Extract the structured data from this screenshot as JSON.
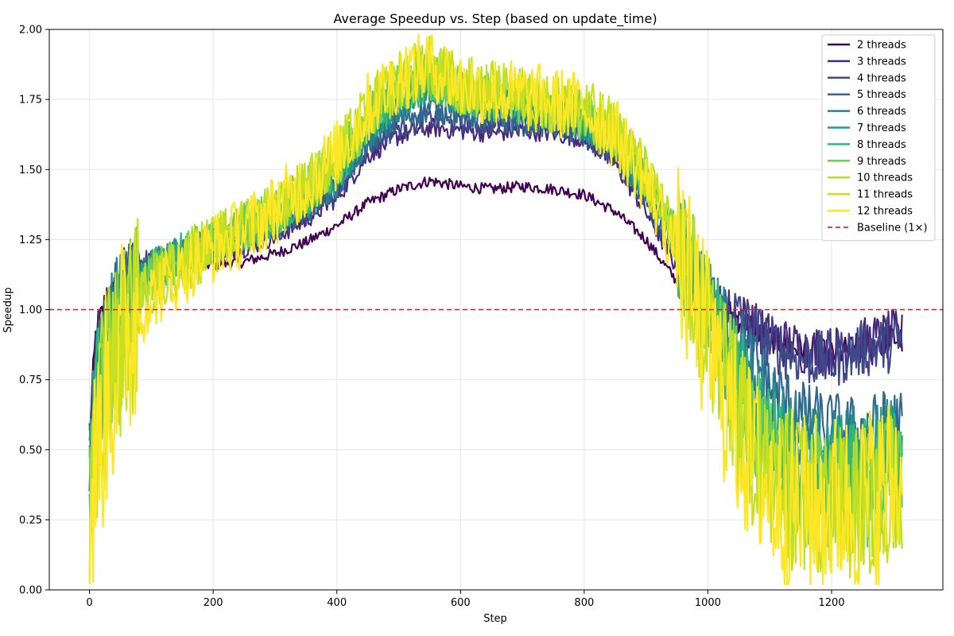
{
  "chart_data": {
    "type": "line",
    "title": "Average Speedup vs. Step (based on update_time)",
    "xlabel": "Step",
    "ylabel": "Speedup",
    "xlim": [
      -65,
      1380
    ],
    "ylim": [
      0,
      2.0
    ],
    "x_ticks": [
      0,
      200,
      400,
      600,
      800,
      1000,
      1200
    ],
    "y_ticks": [
      0.0,
      0.25,
      0.5,
      0.75,
      1.0,
      1.25,
      1.5,
      1.75,
      2.0
    ],
    "x_tick_labels": [
      "0",
      "200",
      "400",
      "600",
      "800",
      "1000",
      "1200"
    ],
    "y_tick_labels": [
      "0.00",
      "0.25",
      "0.50",
      "0.75",
      "1.00",
      "1.25",
      "1.50",
      "1.75",
      "2.00"
    ],
    "grid": true,
    "legend_position": "top-right",
    "baseline": {
      "name": "Baseline (1×)",
      "value": 1.0,
      "color": "#e31a1c",
      "style": "dashed"
    },
    "series_x": [
      0,
      10,
      25,
      50,
      75,
      100,
      150,
      200,
      250,
      300,
      350,
      400,
      450,
      500,
      550,
      600,
      650,
      700,
      750,
      800,
      850,
      900,
      950,
      1000,
      1050,
      1100,
      1150,
      1200,
      1250,
      1300,
      1315
    ],
    "series": [
      {
        "name": "2 threads",
        "color": "#440154",
        "noise": 0.02,
        "values": [
          0.55,
          0.9,
          1.02,
          1.08,
          1.12,
          1.14,
          1.16,
          1.16,
          1.17,
          1.2,
          1.24,
          1.3,
          1.38,
          1.43,
          1.46,
          1.44,
          1.43,
          1.44,
          1.43,
          1.41,
          1.35,
          1.25,
          1.1,
          1.02,
          0.97,
          0.9,
          0.86,
          0.84,
          0.87,
          0.9,
          0.89
        ]
      },
      {
        "name": "3 threads",
        "color": "#482878",
        "noise": 0.035,
        "values": [
          0.5,
          0.85,
          1.0,
          1.1,
          1.16,
          1.18,
          1.19,
          1.2,
          1.22,
          1.26,
          1.32,
          1.4,
          1.55,
          1.62,
          1.65,
          1.64,
          1.63,
          1.64,
          1.63,
          1.61,
          1.52,
          1.35,
          1.15,
          1.02,
          0.98,
          0.9,
          0.86,
          0.85,
          0.88,
          0.91,
          0.9
        ]
      },
      {
        "name": "4 threads",
        "color": "#3e4989",
        "noise": 0.04,
        "values": [
          0.45,
          0.8,
          0.98,
          1.08,
          1.15,
          1.18,
          1.2,
          1.22,
          1.24,
          1.28,
          1.34,
          1.42,
          1.58,
          1.65,
          1.68,
          1.67,
          1.66,
          1.66,
          1.65,
          1.62,
          1.54,
          1.38,
          1.18,
          1.04,
          0.98,
          0.88,
          0.83,
          0.82,
          0.86,
          0.88,
          0.88
        ]
      },
      {
        "name": "5 threads",
        "color": "#31688e",
        "noise": 0.05,
        "values": [
          0.4,
          0.75,
          0.95,
          1.05,
          1.12,
          1.17,
          1.2,
          1.23,
          1.26,
          1.3,
          1.36,
          1.44,
          1.6,
          1.68,
          1.72,
          1.7,
          1.68,
          1.68,
          1.66,
          1.63,
          1.56,
          1.4,
          1.2,
          1.03,
          0.9,
          0.72,
          0.62,
          0.58,
          0.56,
          0.6,
          0.58
        ]
      },
      {
        "name": "6 threads",
        "color": "#26828e",
        "noise": 0.06,
        "values": [
          0.38,
          0.72,
          0.92,
          1.02,
          1.1,
          1.16,
          1.2,
          1.24,
          1.27,
          1.32,
          1.38,
          1.46,
          1.62,
          1.72,
          1.78,
          1.74,
          1.72,
          1.71,
          1.69,
          1.66,
          1.58,
          1.42,
          1.22,
          1.03,
          0.85,
          0.65,
          0.55,
          0.5,
          0.5,
          0.55,
          0.52
        ]
      },
      {
        "name": "7 threads",
        "color": "#1f9e89",
        "noise": 0.07,
        "values": [
          0.35,
          0.7,
          0.88,
          1.0,
          1.08,
          1.15,
          1.2,
          1.24,
          1.28,
          1.33,
          1.39,
          1.48,
          1.64,
          1.75,
          1.8,
          1.76,
          1.74,
          1.73,
          1.7,
          1.67,
          1.6,
          1.44,
          1.24,
          1.02,
          0.8,
          0.58,
          0.48,
          0.44,
          0.45,
          0.5,
          0.48
        ]
      },
      {
        "name": "8 threads",
        "color": "#35b779",
        "noise": 0.08,
        "values": [
          0.3,
          0.65,
          0.85,
          0.98,
          1.06,
          1.14,
          1.2,
          1.25,
          1.29,
          1.34,
          1.4,
          1.5,
          1.66,
          1.77,
          1.82,
          1.77,
          1.75,
          1.74,
          1.71,
          1.68,
          1.62,
          1.46,
          1.25,
          1.0,
          0.75,
          0.52,
          0.42,
          0.4,
          0.4,
          0.45,
          0.45
        ]
      },
      {
        "name": "9 threads",
        "color": "#6ece58",
        "noise": 0.09,
        "values": [
          0.28,
          0.6,
          0.8,
          0.95,
          1.05,
          1.12,
          1.19,
          1.25,
          1.29,
          1.35,
          1.42,
          1.52,
          1.68,
          1.79,
          1.84,
          1.78,
          1.76,
          1.75,
          1.72,
          1.7,
          1.63,
          1.47,
          1.25,
          0.98,
          0.7,
          0.45,
          0.38,
          0.35,
          0.36,
          0.42,
          0.42
        ]
      },
      {
        "name": "10 threads",
        "color": "#b5de2b",
        "noise": 0.1,
        "values": [
          0.25,
          0.55,
          0.75,
          0.92,
          1.02,
          1.1,
          1.18,
          1.24,
          1.29,
          1.36,
          1.43,
          1.53,
          1.7,
          1.81,
          1.86,
          1.79,
          1.77,
          1.76,
          1.73,
          1.71,
          1.64,
          1.48,
          1.24,
          0.95,
          0.65,
          0.4,
          0.34,
          0.32,
          0.33,
          0.4,
          0.4
        ]
      },
      {
        "name": "11 threads",
        "color": "#c8e020",
        "noise": 0.11,
        "values": [
          0.22,
          0.5,
          0.7,
          0.88,
          1.0,
          1.08,
          1.16,
          1.23,
          1.29,
          1.36,
          1.44,
          1.54,
          1.71,
          1.82,
          1.87,
          1.8,
          1.78,
          1.76,
          1.74,
          1.72,
          1.64,
          1.48,
          1.22,
          0.92,
          0.6,
          0.38,
          0.32,
          0.3,
          0.32,
          0.38,
          0.4
        ]
      },
      {
        "name": "12 threads",
        "color": "#fde725",
        "noise": 0.13,
        "values": [
          0.2,
          0.45,
          0.65,
          0.85,
          0.97,
          1.05,
          1.14,
          1.22,
          1.28,
          1.36,
          1.45,
          1.55,
          1.72,
          1.83,
          1.88,
          1.8,
          1.78,
          1.76,
          1.74,
          1.72,
          1.63,
          1.46,
          1.2,
          0.88,
          0.55,
          0.35,
          0.3,
          0.3,
          0.32,
          0.38,
          0.4
        ]
      }
    ]
  }
}
